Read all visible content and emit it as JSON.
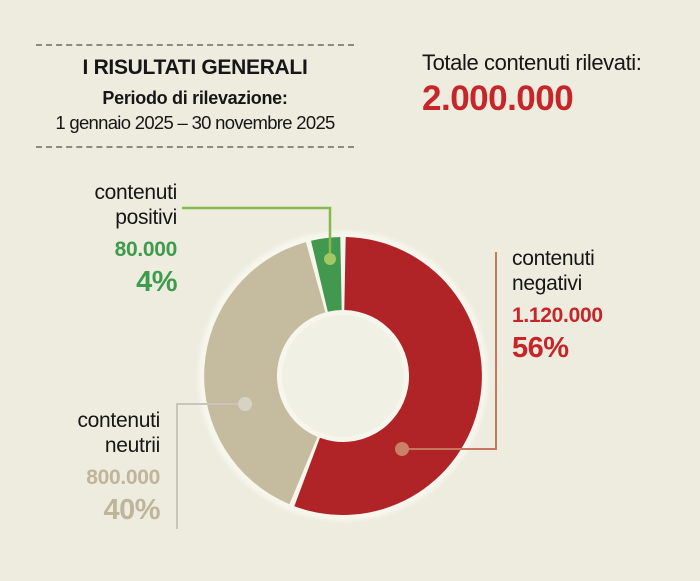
{
  "page": {
    "background": "#edecdf"
  },
  "header": {
    "title": "I RISULTATI GENERALI",
    "subtitle": "Periodo di rilevazione:",
    "period": "1 gennaio 2025 – 30 novembre 2025"
  },
  "total": {
    "label": "Totale contenuti rilevati:",
    "value": "2.000.000",
    "value_color": "#c62629"
  },
  "chart_data": {
    "type": "pie",
    "donut": true,
    "title": "Totale contenuti rilevati: 2.000.000",
    "total_value": 2000000,
    "start_angle_deg": 0,
    "clockwise": true,
    "gap_deg": 2.2,
    "inner_radius_ratio": 0.475,
    "halo_color": "#f7f6ed",
    "hole_color": "#f1f0e4",
    "segments": [
      {
        "id": "negativi",
        "label": "contenuti negativi",
        "label_line1": "contenuti",
        "label_line2": "negativi",
        "value": 1120000,
        "value_label": "1.120.000",
        "pct": 56,
        "pct_label": "56%",
        "color": "#b02327",
        "text_color": "#c62629",
        "connector_line_color": "#c5775f",
        "connector_dot_color": "#c98168"
      },
      {
        "id": "neutrii",
        "label": "contenuti neutrii",
        "label_line1": "contenuti",
        "label_line2": "neutrii",
        "value": 800000,
        "value_label": "800.000",
        "pct": 40,
        "pct_label": "40%",
        "color": "#c5bb9f",
        "text_color": "#bfb59b",
        "connector_line_color": "#c9c5b8",
        "connector_dot_color": "#d7d3c4"
      },
      {
        "id": "positivi",
        "label": "contenuti positivi",
        "label_line1": "contenuti",
        "label_line2": "positivi",
        "value": 80000,
        "value_label": "80.000",
        "pct": 4,
        "pct_label": "4%",
        "color": "#42984f",
        "text_color": "#3f9b4e",
        "connector_line_color": "#85b94b",
        "connector_dot_color": "#a2c765"
      }
    ]
  }
}
